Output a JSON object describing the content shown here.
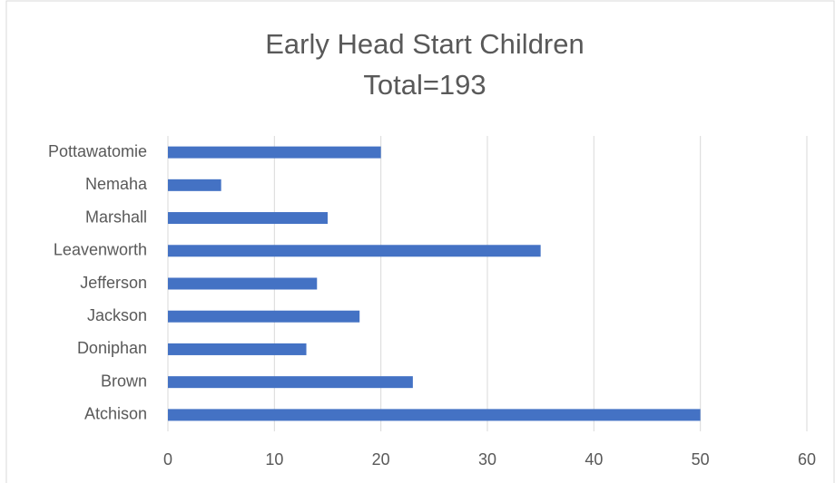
{
  "chart_data": {
    "type": "bar",
    "orientation": "horizontal",
    "title": "Early Head Start Children",
    "subtitle": "Total=193",
    "categories": [
      "Atchison",
      "Brown",
      "Doniphan",
      "Jackson",
      "Jefferson",
      "Leavenworth",
      "Marshall",
      "Nemaha",
      "Pottawatomie"
    ],
    "values": [
      50,
      23,
      13,
      18,
      14,
      35,
      15,
      5,
      20
    ],
    "color": "#4472c4",
    "xlim": [
      0,
      60
    ],
    "xticks": [
      0,
      10,
      20,
      30,
      40,
      50,
      60
    ],
    "grid": true
  }
}
